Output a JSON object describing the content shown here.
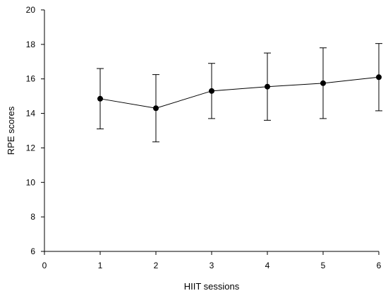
{
  "chart_data": {
    "type": "line",
    "xlabel": "HIIT sessions",
    "ylabel": "RPE scores",
    "xlim": [
      0,
      6
    ],
    "ylim": [
      6,
      20
    ],
    "xticks": [
      "0",
      "1",
      "2",
      "3",
      "4",
      "5",
      "6"
    ],
    "yticks": [
      "6",
      "8",
      "10",
      "12",
      "14",
      "16",
      "18",
      "20"
    ],
    "grid": false,
    "series": [
      {
        "x": [
          1,
          2,
          3,
          4,
          5,
          6
        ],
        "values": [
          14.85,
          14.3,
          15.3,
          15.55,
          15.75,
          16.1
        ],
        "error": [
          1.75,
          1.95,
          1.6,
          1.95,
          2.05,
          1.95
        ]
      }
    ]
  }
}
